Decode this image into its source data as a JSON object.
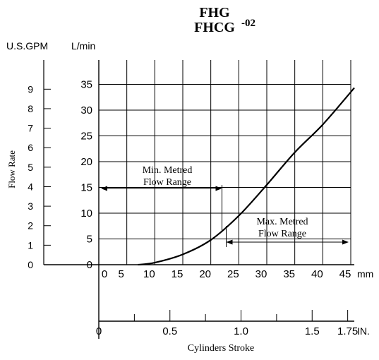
{
  "chart_data": {
    "type": "line",
    "title_line1": "FHG",
    "title_line2": "FHCG",
    "title_suffix": "-02",
    "ylabel": "Flow Rate",
    "xlabel": "Cylinders Stroke",
    "y_unit_left": "U.S.GPM",
    "y_unit_right": "L/min",
    "x_unit_mm": "mm",
    "x_unit_in": "IN.",
    "gpm_ticks": [
      "0",
      "1",
      "2",
      "3",
      "4",
      "5",
      "6",
      "7",
      "8",
      "9"
    ],
    "lmin_ticks": [
      "0",
      "5",
      "10",
      "15",
      "20",
      "25",
      "30",
      "35"
    ],
    "mm_ticks": [
      "0",
      "5",
      "10",
      "15",
      "20",
      "25",
      "30",
      "35",
      "40",
      "45"
    ],
    "in_ticks": [
      "0",
      "0.5",
      "1.0",
      "1.5",
      "1.75"
    ],
    "xlim_mm": [
      0,
      45
    ],
    "ylim_lmin": [
      0,
      35
    ],
    "grid": true,
    "series": [
      {
        "x": [
          7,
          10,
          15,
          20,
          25,
          30,
          35,
          40,
          45
        ],
        "y": [
          0,
          0.4,
          2,
          4.8,
          9.5,
          15.5,
          21.8,
          27.2,
          33.5
        ]
      }
    ],
    "annotations": {
      "min_range_line1": "Min. Metred",
      "min_range_line2": "Flow Range",
      "min_range_end_mm": 22.5,
      "max_range_line1": "Max. Metred",
      "max_range_line2": "Flow Range",
      "max_range_start_mm": 22.5
    }
  }
}
